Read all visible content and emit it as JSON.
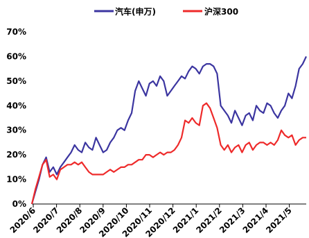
{
  "chart_data": {
    "type": "line",
    "title": "",
    "xlabel": "",
    "ylabel": "",
    "ylim": [
      0,
      70
    ],
    "y_ticks": [
      "0%",
      "10%",
      "20%",
      "30%",
      "40%",
      "50%",
      "60%",
      "70%"
    ],
    "x_ticks": [
      "2020/6",
      "2020/7",
      "2020/8",
      "2020/9",
      "2020/10",
      "2020/11",
      "2020/12",
      "2021/1",
      "2021/2",
      "2021/3",
      "2021/4",
      "2021/5"
    ],
    "grid": false,
    "legend_position": "top",
    "series": [
      {
        "name": "汽车(申万)",
        "color": "#3b35a0",
        "values": [
          0,
          5,
          10,
          16,
          19,
          13,
          15,
          12,
          15,
          17,
          19,
          21,
          24,
          22,
          21,
          25,
          23,
          22,
          27,
          24,
          21,
          22,
          25,
          27,
          30,
          31,
          30,
          34,
          37,
          46,
          50,
          47,
          44,
          49,
          50,
          48,
          52,
          50,
          44,
          46,
          48,
          50,
          52,
          51,
          54,
          56,
          55,
          53,
          56,
          57,
          57,
          56,
          53,
          40,
          38,
          36,
          33,
          38,
          35,
          32,
          36,
          37,
          34,
          40,
          38,
          37,
          41,
          40,
          37,
          35,
          38,
          40,
          45,
          43,
          48,
          55,
          57,
          60
        ]
      },
      {
        "name": "沪深300",
        "color": "#ee2a2a",
        "values": [
          0,
          6,
          11,
          16,
          18,
          11,
          12,
          10,
          14,
          15,
          16,
          16,
          17,
          16,
          17,
          15,
          13,
          12,
          12,
          12,
          12,
          13,
          14,
          13,
          14,
          15,
          15,
          16,
          16,
          17,
          18,
          18,
          20,
          20,
          19,
          20,
          21,
          20,
          21,
          21,
          22,
          24,
          27,
          34,
          33,
          35,
          33,
          32,
          40,
          41,
          39,
          35,
          31,
          24,
          22,
          24,
          21,
          23,
          24,
          21,
          24,
          25,
          22,
          24,
          25,
          25,
          24,
          25,
          24,
          26,
          30,
          28,
          27,
          28,
          24,
          26,
          27,
          27
        ]
      }
    ]
  }
}
